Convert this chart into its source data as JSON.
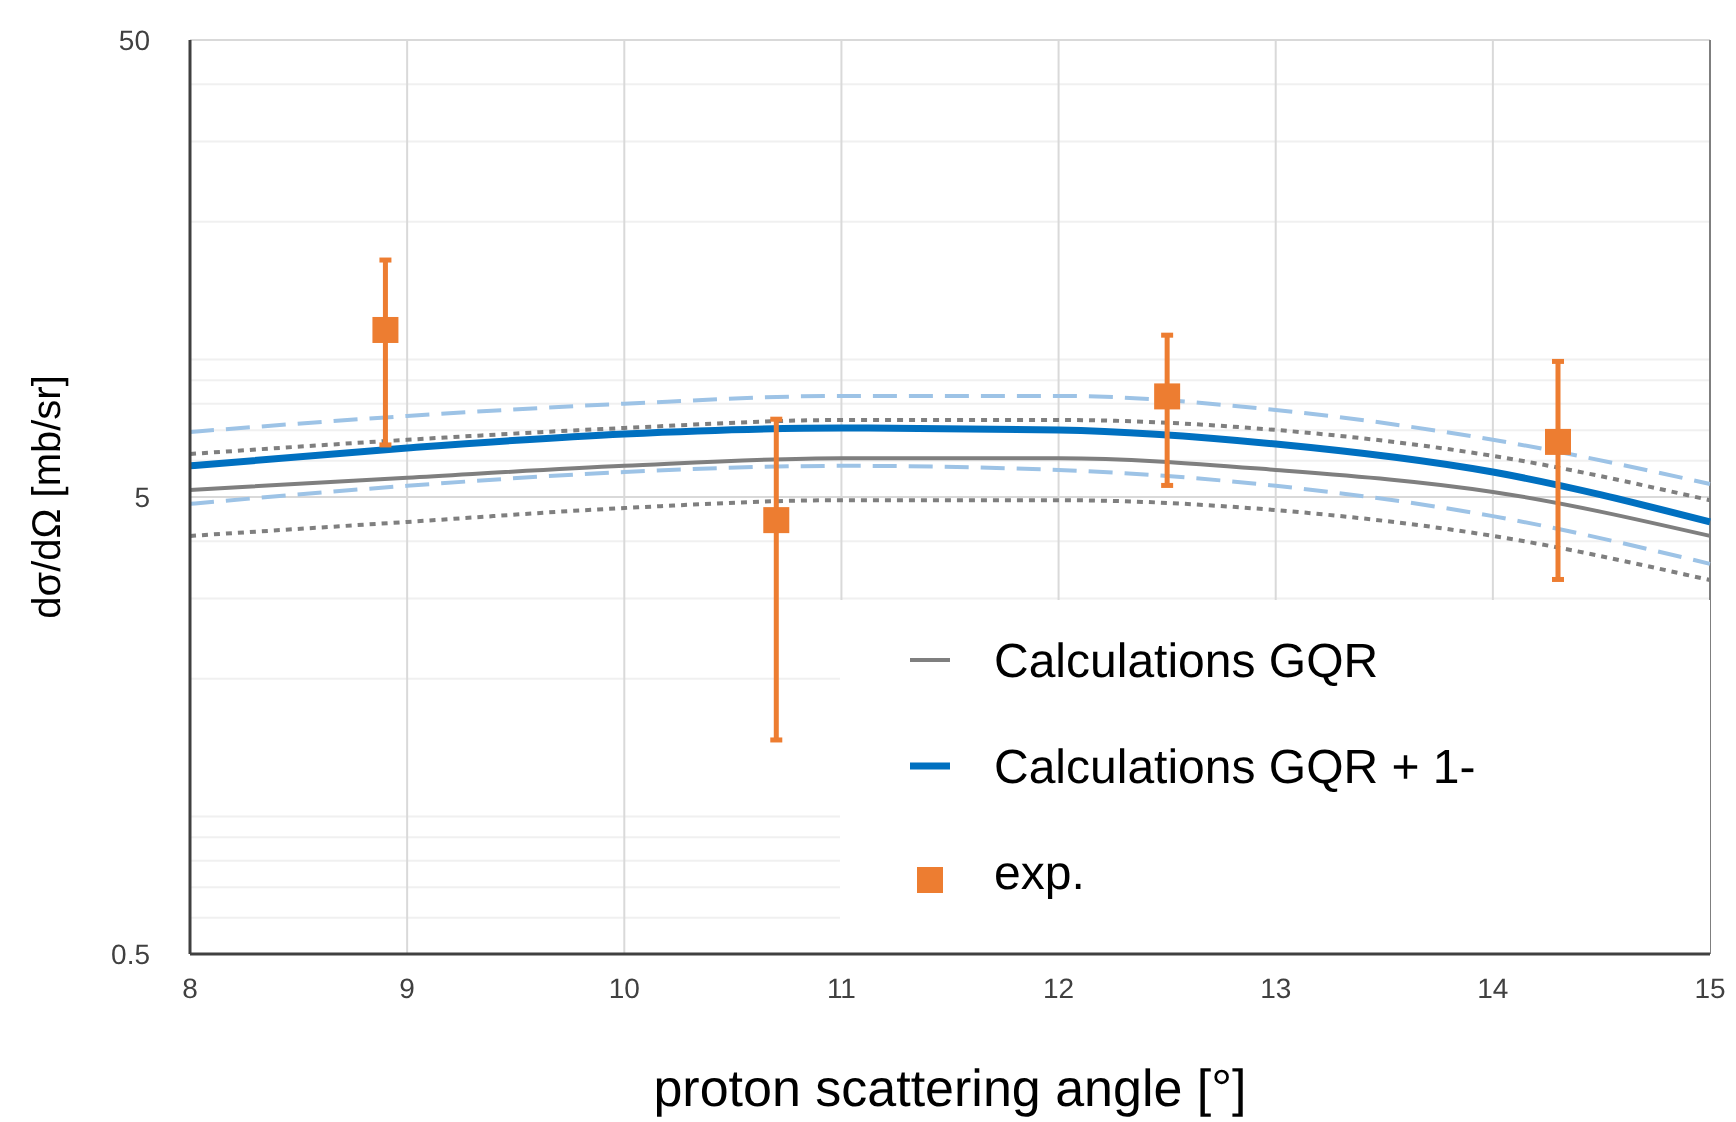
{
  "chart_data": {
    "type": "line",
    "xlabel": "proton scattering angle [°]",
    "ylabel": "dσ/dΩ [mb/sr]",
    "log": "y",
    "grid": true,
    "legend": "bottom right",
    "xlim": [
      8,
      15
    ],
    "ylim": [
      0.5,
      50
    ],
    "xticks": [
      8,
      9,
      10,
      11,
      12,
      13,
      14,
      15
    ],
    "yticks": [
      0.5,
      {
        "value": 0.6,
        "label": null
      },
      {
        "value": 0.7,
        "label": null
      },
      {
        "value": 0.8,
        "label": null
      },
      {
        "value": 0.9,
        "label": null
      },
      {
        "value": 1,
        "label": null
      },
      {
        "value": 2,
        "label": null
      },
      {
        "value": 3,
        "label": null
      },
      {
        "value": 4,
        "label": null
      },
      5,
      {
        "value": 6,
        "label": null
      },
      {
        "value": 7,
        "label": null
      },
      {
        "value": 8,
        "label": null
      },
      {
        "value": 9,
        "label": null
      },
      {
        "value": 10,
        "label": null
      },
      {
        "value": 20,
        "label": null
      },
      {
        "value": 30,
        "label": null
      },
      {
        "value": 40,
        "label": null
      },
      50
    ],
    "x": [
      8,
      9,
      10,
      11,
      12,
      13,
      14,
      15
    ],
    "series": [
      {
        "color": "#9dc3e6",
        "line_style": "dashed",
        "values": [
          6.94,
          7.52,
          8.0,
          8.32,
          8.32,
          7.75,
          6.67,
          5.34
        ]
      },
      {
        "color": "#9dc3e6",
        "line_style": "dashed",
        "values": [
          4.83,
          5.29,
          5.67,
          5.85,
          5.73,
          5.29,
          4.54,
          3.57
        ]
      },
      {
        "color": "#7f7f7f",
        "line_style": "dotted",
        "values": [
          6.21,
          6.67,
          7.08,
          7.37,
          7.37,
          7.01,
          6.15,
          4.92
        ]
      },
      {
        "color": "#7f7f7f",
        "line_style": "dotted",
        "values": [
          4.11,
          4.41,
          4.73,
          4.92,
          4.92,
          4.68,
          4.11,
          3.29
        ]
      },
      {
        "name": "Calculations GQR",
        "color": "#7f7f7f",
        "line_style": "solid",
        "values": [
          5.18,
          5.51,
          5.85,
          6.08,
          6.08,
          5.73,
          5.13,
          4.11
        ]
      },
      {
        "name": "Calculations GQR + 1-",
        "color": "#0070c0",
        "line_style": "solid",
        "values": [
          5.85,
          6.4,
          6.87,
          7.08,
          7.01,
          6.53,
          5.67,
          4.41
        ]
      },
      {
        "name": "exp.",
        "type": "scatter",
        "marker": "square",
        "color": "#ed7d31",
        "x": [
          8.9,
          10.7,
          12.5,
          14.3
        ],
        "values": [
          11.6,
          4.45,
          8.3,
          6.6
        ],
        "errors": [
          [
            6.5,
            16.5
          ],
          [
            1.47,
            7.4
          ],
          [
            5.3,
            11.3
          ],
          [
            3.3,
            9.9
          ]
        ]
      }
    ]
  }
}
